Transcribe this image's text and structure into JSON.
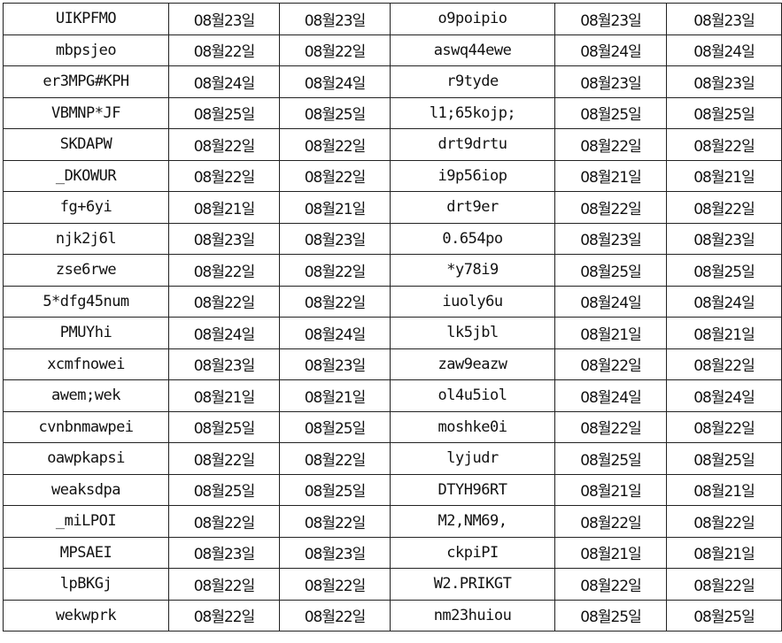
{
  "rows": [
    [
      "UIKPFMO",
      "08월23일",
      "08월23일",
      "o9poipio",
      "08월23일",
      "08월23일"
    ],
    [
      "mbpsjeo",
      "08월22일",
      "08월22일",
      "aswq44ewe",
      "08월24일",
      "08월24일"
    ],
    [
      "er3MPG#KPH",
      "08월24일",
      "08월24일",
      "r9tyde",
      "08월23일",
      "08월23일"
    ],
    [
      "VBMNP*JF",
      "08월25일",
      "08월25일",
      "l1;65kojp;",
      "08월25일",
      "08월25일"
    ],
    [
      "SKDAPW",
      "08월22일",
      "08월22일",
      "drt9drtu",
      "08월22일",
      "08월22일"
    ],
    [
      "_DKOWUR",
      "08월22일",
      "08월22일",
      "i9p56iop",
      "08월21일",
      "08월21일"
    ],
    [
      "fg+6yi",
      "08월21일",
      "08월21일",
      "drt9er",
      "08월22일",
      "08월22일"
    ],
    [
      "njk2j6l",
      "08월23일",
      "08월23일",
      "0.654po",
      "08월23일",
      "08월23일"
    ],
    [
      "zse6rwe",
      "08월22일",
      "08월22일",
      "*y78i9",
      "08월25일",
      "08월25일"
    ],
    [
      "5*dfg45num",
      "08월22일",
      "08월22일",
      "iuoly6u",
      "08월24일",
      "08월24일"
    ],
    [
      "PMUYhi",
      "08월24일",
      "08월24일",
      "lk5jbl",
      "08월21일",
      "08월21일"
    ],
    [
      "xcmfnowei",
      "08월23일",
      "08월23일",
      "zaw9eazw",
      "08월22일",
      "08월22일"
    ],
    [
      "awem;wek",
      "08월21일",
      "08월21일",
      "ol4u5iol",
      "08월24일",
      "08월24일"
    ],
    [
      "cvnbnmawpei",
      "08월25일",
      "08월25일",
      "moshke0i",
      "08월22일",
      "08월22일"
    ],
    [
      "oawpkapsi",
      "08월22일",
      "08월22일",
      "lyjudr",
      "08월25일",
      "08월25일"
    ],
    [
      "weaksdpa",
      "08월25일",
      "08월25일",
      "DTYH96RT",
      "08월21일",
      "08월21일"
    ],
    [
      "_miLPOI",
      "08월22일",
      "08월22일",
      "M2,NM69,",
      "08월22일",
      "08월22일"
    ],
    [
      "MPSAEI",
      "08월23일",
      "08월23일",
      "ckpiPI",
      "08월21일",
      "08월21일"
    ],
    [
      "lpBKGj",
      "08월22일",
      "08월22일",
      "W2.PRIKGT",
      "08월22일",
      "08월22일"
    ],
    [
      "wekwprk",
      "08월22일",
      "08월22일",
      "nm23huiou",
      "08월25일",
      "08월25일"
    ]
  ]
}
